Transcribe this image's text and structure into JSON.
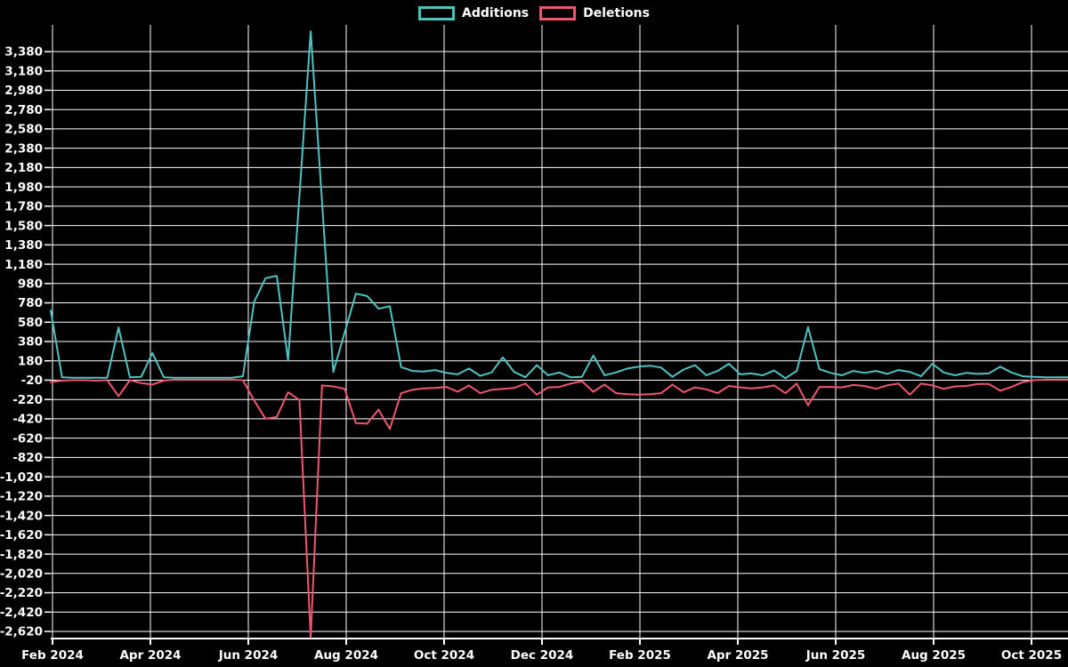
{
  "legend": {
    "items": [
      {
        "label": "Additions"
      },
      {
        "label": "Deletions"
      }
    ]
  },
  "chart_data": {
    "type": "line",
    "title": "",
    "x_unit": "week",
    "x_tick_labels": [
      "Feb 2024",
      "Apr 2024",
      "Jun 2024",
      "Aug 2024",
      "Oct 2024",
      "Dec 2024",
      "Feb 2025",
      "Apr 2025",
      "Jun 2025",
      "Aug 2025",
      "Oct 2025"
    ],
    "y_tick_values": [
      3380,
      3180,
      2980,
      2780,
      2580,
      2380,
      2180,
      1980,
      1780,
      1580,
      1380,
      1180,
      980,
      780,
      580,
      380,
      180,
      -20,
      -220,
      -420,
      -620,
      -820,
      -1020,
      -1220,
      -1420,
      -1620,
      -1820,
      -2020,
      -2220,
      -2420,
      -2620
    ],
    "ylim": [
      -2700,
      3920
    ],
    "grid": true,
    "legend_position": "top-center",
    "background_color": "#000000",
    "grid_color": "#ffffff",
    "text_color": "#ffffff",
    "series": [
      {
        "name": "Additions",
        "color": "#4fc2c2",
        "values": [
          700,
          10,
          5,
          5,
          5,
          5,
          525,
          10,
          15,
          260,
          10,
          5,
          5,
          5,
          5,
          5,
          5,
          20,
          790,
          1035,
          1060,
          185,
          1880,
          3590,
          1830,
          65,
          470,
          875,
          850,
          720,
          745,
          115,
          75,
          70,
          85,
          55,
          40,
          100,
          25,
          60,
          215,
          65,
          10,
          135,
          30,
          60,
          10,
          15,
          235,
          30,
          60,
          100,
          120,
          130,
          110,
          15,
          90,
          135,
          30,
          75,
          150,
          40,
          50,
          30,
          80,
          0,
          75,
          530,
          95,
          55,
          30,
          75,
          55,
          75,
          45,
          85,
          65,
          20,
          150,
          60,
          30,
          55,
          45,
          50,
          120,
          60,
          20,
          15,
          10,
          10,
          10
        ]
      },
      {
        "name": "Deletions",
        "color": "#f1566f",
        "values": [
          -40,
          -25,
          -20,
          -20,
          -25,
          -20,
          -185,
          -20,
          -50,
          -65,
          -25,
          -15,
          -15,
          -15,
          -15,
          -15,
          -15,
          -20,
          -230,
          -420,
          -400,
          -145,
          -225,
          -2680,
          -75,
          -85,
          -110,
          -465,
          -470,
          -325,
          -525,
          -155,
          -120,
          -105,
          -100,
          -90,
          -140,
          -75,
          -155,
          -120,
          -110,
          -100,
          -55,
          -170,
          -95,
          -90,
          -55,
          -30,
          -140,
          -65,
          -155,
          -165,
          -170,
          -165,
          -155,
          -65,
          -145,
          -95,
          -115,
          -155,
          -80,
          -95,
          -105,
          -95,
          -75,
          -155,
          -55,
          -280,
          -90,
          -90,
          -95,
          -70,
          -80,
          -110,
          -75,
          -55,
          -170,
          -55,
          -75,
          -110,
          -85,
          -80,
          -60,
          -60,
          -130,
          -90,
          -40,
          -20,
          -15,
          -15,
          -15
        ]
      }
    ]
  }
}
